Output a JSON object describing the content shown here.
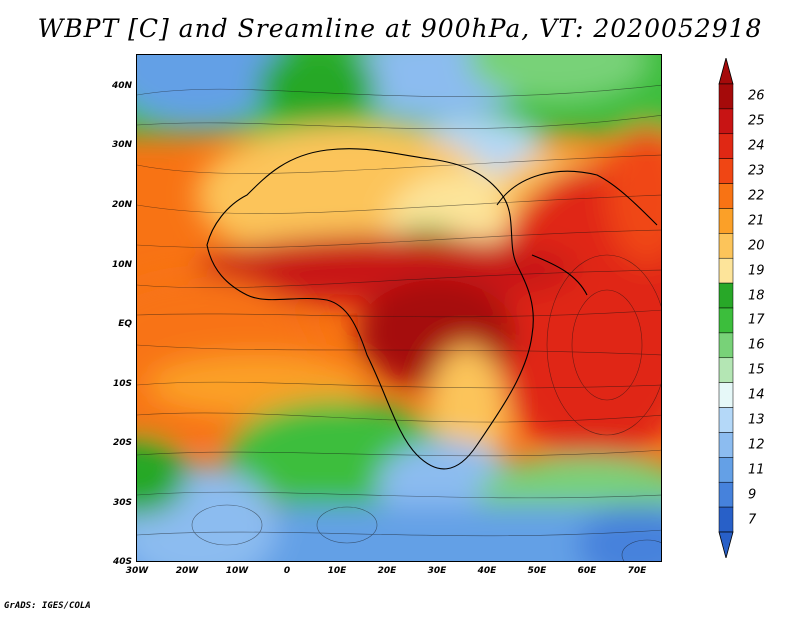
{
  "title": "WBPT [C] and Sreamline at 900hPa, VT: 2020052918",
  "credit": "GrADS: IGES/COLA",
  "lat_labels": [
    "40N",
    "30N",
    "20N",
    "10N",
    "EQ",
    "10S",
    "20S",
    "30S",
    "40S"
  ],
  "lon_labels": [
    "30W",
    "20W",
    "10W",
    "0",
    "10E",
    "20E",
    "30E",
    "40E",
    "50E",
    "60E",
    "70E"
  ],
  "colorbar": {
    "labels": [
      "26",
      "25",
      "24",
      "23",
      "22",
      "21",
      "20",
      "19",
      "18",
      "17",
      "16",
      "15",
      "14",
      "13",
      "12",
      "11",
      "9",
      "7"
    ],
    "colors": [
      "#a50a0a",
      "#c81414",
      "#e02814",
      "#f04614",
      "#f87314",
      "#fba028",
      "#fcc45a",
      "#fde49a",
      "#28a828",
      "#3cbe3c",
      "#78d278",
      "#b4e6b4",
      "#e6f8f8",
      "#b4d8f8",
      "#8cbcf0",
      "#64a0e6",
      "#4682dc",
      "#2860c8"
    ],
    "top_arrow": "#a50a0a",
    "bottom_arrow": "#2860c8"
  },
  "map": {
    "lon_range": [
      -30,
      75
    ],
    "lat_range": [
      -40,
      45
    ],
    "projection": "latlon",
    "field": "WBPT",
    "level": "900hPa",
    "valid_time": "2020052918"
  }
}
